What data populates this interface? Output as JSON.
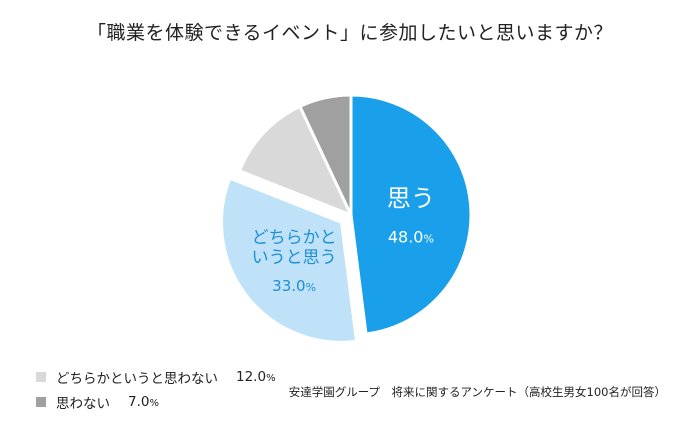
{
  "chart_data": {
    "type": "pie",
    "title": "「職業を体験できるイベント」に参加したいと思いますか？",
    "slices": [
      {
        "label": "思う",
        "value": 48.0,
        "value_label": "48.0",
        "unit": "%",
        "color": "#1aa0ea",
        "text_color": "#ffffff",
        "explode": false
      },
      {
        "label": "どちらかというと思う",
        "label_lines": [
          "どちらかと",
          "いうと思う"
        ],
        "value": 33.0,
        "value_label": "33.0",
        "unit": "%",
        "color": "#bfe2f8",
        "text_color": "#1e8fd6",
        "explode": true
      },
      {
        "label": "どちらかというと思わない",
        "value": 12.0,
        "value_label": "12.0",
        "unit": "%",
        "color": "#d9d9d9",
        "explode": false
      },
      {
        "label": "思わない",
        "value": 7.0,
        "value_label": "7.0",
        "unit": "%",
        "color": "#a0a0a0",
        "explode": false
      }
    ],
    "legend": [
      {
        "label": "どちらかというと思わない",
        "value": "12.0",
        "unit": "%",
        "color": "#d9d9d9"
      },
      {
        "label": "思わない",
        "value": "7.0",
        "unit": "%",
        "color": "#a0a0a0"
      }
    ],
    "legend_placement": "bottom-left",
    "source": "安達学園グループ　将来に関するアンケート（高校生男女100名が回答）"
  }
}
